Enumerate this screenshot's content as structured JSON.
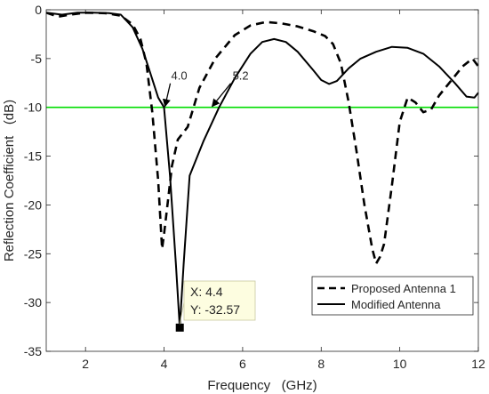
{
  "chart_data": {
    "type": "line",
    "xlabel": "Frequency   (GHz)",
    "ylabel": "Reflection Coefficient   (dB)",
    "xlim": [
      1,
      12
    ],
    "ylim": [
      -35,
      0
    ],
    "xticks": [
      2,
      4,
      6,
      8,
      10,
      12
    ],
    "yticks": [
      0,
      -5,
      -10,
      -15,
      -20,
      -25,
      -30,
      -35
    ],
    "grid": false,
    "legend_position": "bottom-right",
    "series": [
      {
        "name": "Proposed Antenna 1",
        "style": "dashed",
        "color": "#000000",
        "x": [
          1.0,
          1.3,
          1.6,
          2.0,
          2.5,
          2.9,
          3.2,
          3.4,
          3.55,
          3.7,
          3.85,
          3.95,
          4.0,
          4.1,
          4.2,
          4.35,
          4.6,
          4.9,
          5.3,
          5.8,
          6.2,
          6.6,
          7.0,
          7.4,
          7.8,
          8.1,
          8.3,
          8.5,
          8.7,
          8.9,
          9.1,
          9.3,
          9.4,
          9.5,
          9.6,
          9.8,
          10.0,
          10.2,
          10.4,
          10.6,
          10.8,
          11.0,
          11.3,
          11.6,
          11.85,
          12.0
        ],
        "y": [
          -0.3,
          -0.7,
          -0.5,
          -0.3,
          -0.35,
          -0.6,
          -1.5,
          -3.0,
          -5.5,
          -10.5,
          -17.5,
          -24.5,
          -23.0,
          -19.5,
          -16.0,
          -13.3,
          -12.0,
          -8.0,
          -5.0,
          -2.6,
          -1.6,
          -1.25,
          -1.4,
          -1.7,
          -2.2,
          -2.7,
          -3.5,
          -5.5,
          -9.5,
          -14.5,
          -20.0,
          -24.5,
          -26.0,
          -25.3,
          -24.0,
          -18.0,
          -11.5,
          -9.0,
          -9.5,
          -10.5,
          -10.2,
          -8.8,
          -7.3,
          -5.8,
          -5.0,
          -5.8
        ]
      },
      {
        "name": "Modified Antenna",
        "style": "solid",
        "color": "#000000",
        "x": [
          1.0,
          1.4,
          1.8,
          2.2,
          2.6,
          2.9,
          3.2,
          3.45,
          3.65,
          3.85,
          4.0,
          4.15,
          4.3,
          4.4,
          4.5,
          4.65,
          5.0,
          5.4,
          5.8,
          6.2,
          6.5,
          6.8,
          7.1,
          7.4,
          7.8,
          8.0,
          8.2,
          8.4,
          8.7,
          9.0,
          9.4,
          9.8,
          10.2,
          10.6,
          11.0,
          11.4,
          11.7,
          11.9,
          12.0
        ],
        "y": [
          -0.3,
          -0.5,
          -0.3,
          -0.3,
          -0.35,
          -0.5,
          -1.8,
          -4.0,
          -6.5,
          -9.0,
          -10.0,
          -17.0,
          -26.0,
          -32.57,
          -26.0,
          -17.0,
          -13.5,
          -10.0,
          -7.0,
          -4.5,
          -3.3,
          -3.0,
          -3.3,
          -4.3,
          -6.2,
          -7.2,
          -7.6,
          -7.3,
          -6.0,
          -5.0,
          -4.3,
          -3.8,
          -3.9,
          -4.5,
          -5.8,
          -7.5,
          -8.9,
          -9.0,
          -8.5
        ]
      }
    ],
    "threshold": {
      "y": -10,
      "color": "#00dd00"
    },
    "annotations": [
      {
        "text": "4.0",
        "x": 4.0,
        "y": -10
      },
      {
        "text": "5.2",
        "x": 5.2,
        "y": -10
      }
    ],
    "datatip": {
      "x_label": "X: 4.4",
      "y_label": "Y: -32.57",
      "x": 4.4,
      "y": -32.57
    }
  }
}
